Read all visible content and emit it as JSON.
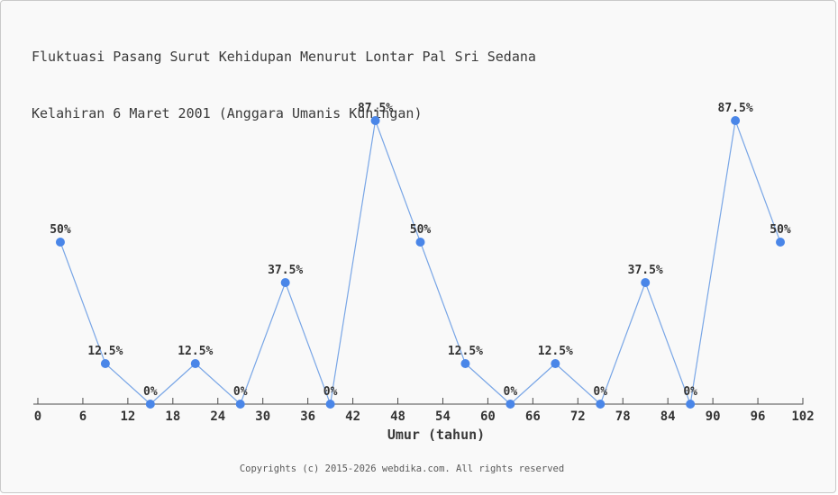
{
  "chart_data": {
    "type": "line",
    "title_line1": "Fluktuasi Pasang Surut Kehidupan Menurut Lontar Pal Sri Sedana",
    "title_line2": "Kelahiran 6 Maret 2001 (Anggara Umanis Kuningan)",
    "xlabel": "Umur (tahun)",
    "x": [
      3,
      9,
      15,
      21,
      27,
      33,
      39,
      45,
      51,
      57,
      63,
      69,
      75,
      81,
      87,
      93,
      99
    ],
    "values": [
      50,
      12.5,
      0,
      12.5,
      0,
      37.5,
      0,
      87.5,
      50,
      12.5,
      0,
      12.5,
      0,
      37.5,
      0,
      87.5,
      50
    ],
    "point_labels": [
      "50%",
      "12.5%",
      "0%",
      "12.5%",
      "0%",
      "37.5%",
      "0%",
      "87.5%",
      "50%",
      "12.5%",
      "0%",
      "12.5%",
      "0%",
      "37.5%",
      "0%",
      "87.5%",
      "50%"
    ],
    "x_ticks": [
      0,
      6,
      12,
      18,
      24,
      30,
      36,
      42,
      48,
      54,
      60,
      66,
      72,
      78,
      84,
      90,
      96,
      102
    ],
    "xlim": [
      0,
      102
    ],
    "ylim": [
      0,
      100
    ],
    "grid": false,
    "legend": "none",
    "line_color": "#79a6e6",
    "marker_color": "#4a86e8",
    "axis_color": "#4d4d4d",
    "label_color": "#333333",
    "background_color": "#f9f9f9"
  },
  "footer": {
    "text": "Copyrights (c) 2015-2026 webdika.com. All rights reserved"
  }
}
